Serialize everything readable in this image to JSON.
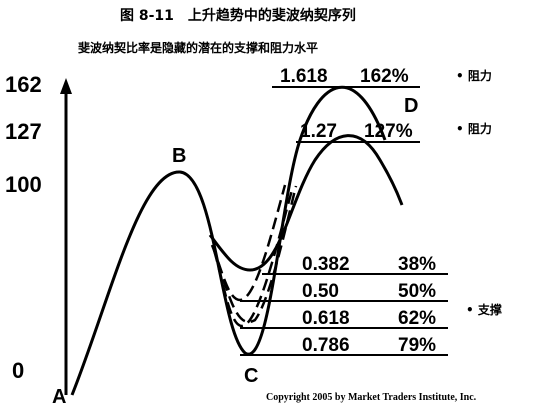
{
  "header": {
    "title": "图 8-11　上升趋势中的斐波纳契序列",
    "subtitle": "斐波纳契比率是隐藏的潜在的支撑和阻力水平"
  },
  "axis": {
    "labels": [
      "162",
      "127",
      "100",
      "0"
    ]
  },
  "points": [
    "A",
    "B",
    "C",
    "D"
  ],
  "levels": [
    {
      "ratio": "1.618",
      "percent": "162%"
    },
    {
      "ratio": "1.27",
      "percent": "127%"
    },
    {
      "ratio": "0.382",
      "percent": "38%"
    },
    {
      "ratio": "0.50",
      "percent": "50%"
    },
    {
      "ratio": "0.618",
      "percent": "62%"
    },
    {
      "ratio": "0.786",
      "percent": "79%"
    }
  ],
  "notes": [
    "• 阻力",
    "• 阻力",
    "• 支撑"
  ],
  "footer": {
    "copyright": "Copyright 2005 by Market Traders Institute, Inc."
  }
}
